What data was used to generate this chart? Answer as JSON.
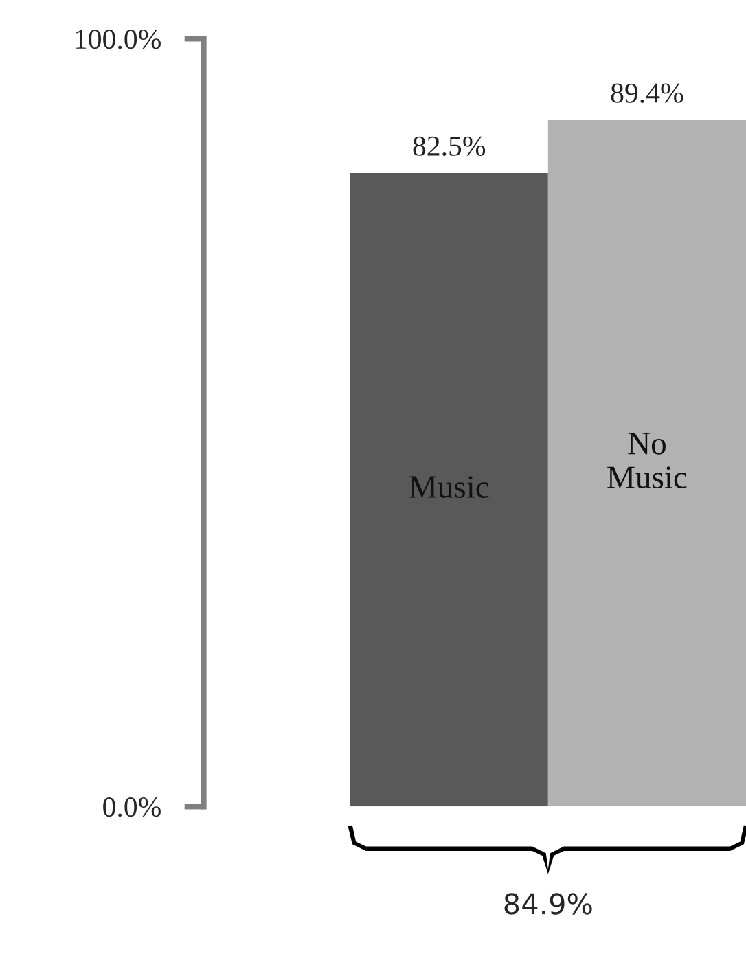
{
  "chart_data": {
    "type": "bar",
    "categories": [
      "Music",
      "No Music"
    ],
    "values": [
      82.5,
      89.4
    ],
    "colors": [
      "#595959",
      "#b2b2b2"
    ],
    "ylim": [
      0,
      100
    ],
    "yticks": [
      {
        "value": 0,
        "label": "0.0%"
      },
      {
        "value": 100,
        "label": "100.0%"
      }
    ],
    "value_labels": [
      "82.5%",
      "89.4%"
    ],
    "grid": false,
    "legend": false,
    "annotations": [
      "84.9%"
    ]
  }
}
